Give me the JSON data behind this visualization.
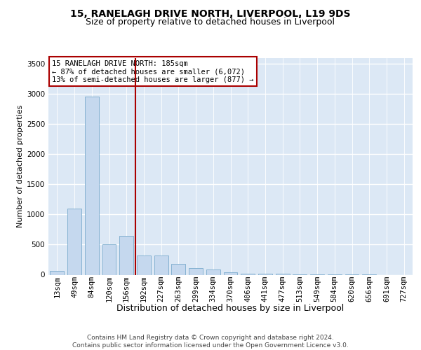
{
  "title1": "15, RANELAGH DRIVE NORTH, LIVERPOOL, L19 9DS",
  "title2": "Size of property relative to detached houses in Liverpool",
  "xlabel": "Distribution of detached houses by size in Liverpool",
  "ylabel": "Number of detached properties",
  "categories": [
    "13sqm",
    "49sqm",
    "84sqm",
    "120sqm",
    "156sqm",
    "192sqm",
    "227sqm",
    "263sqm",
    "299sqm",
    "334sqm",
    "370sqm",
    "406sqm",
    "441sqm",
    "477sqm",
    "513sqm",
    "549sqm",
    "584sqm",
    "620sqm",
    "656sqm",
    "691sqm",
    "727sqm"
  ],
  "values": [
    60,
    1100,
    2950,
    500,
    650,
    320,
    320,
    175,
    110,
    88,
    40,
    22,
    12,
    18,
    5,
    3,
    2,
    1,
    1,
    0,
    0
  ],
  "bar_color": "#c5d8ee",
  "bar_edge_color": "#7aabcc",
  "vline_pos": 4.5,
  "vline_color": "#aa0000",
  "annotation_text": "15 RANELAGH DRIVE NORTH: 185sqm\n← 87% of detached houses are smaller (6,072)\n13% of semi-detached houses are larger (877) →",
  "annotation_box_color": "white",
  "annotation_box_edge": "#aa0000",
  "footer": "Contains HM Land Registry data © Crown copyright and database right 2024.\nContains public sector information licensed under the Open Government Licence v3.0.",
  "ylim_max": 3600,
  "yticks": [
    0,
    500,
    1000,
    1500,
    2000,
    2500,
    3000,
    3500
  ],
  "bg_color": "#dce8f5",
  "title1_fontsize": 10,
  "title2_fontsize": 9,
  "xlabel_fontsize": 9,
  "ylabel_fontsize": 8,
  "tick_fontsize": 7.5,
  "annotation_fontsize": 7.5,
  "footer_fontsize": 6.5
}
